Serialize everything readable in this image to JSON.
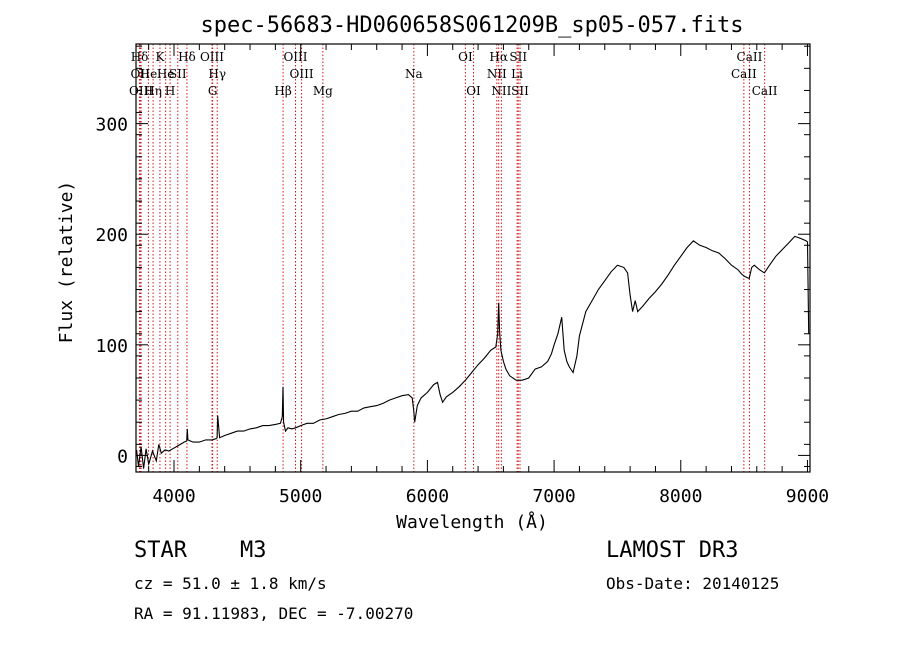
{
  "chart_data": {
    "type": "line",
    "title": "spec-56683-HD060658S061209B_sp05-057.fits",
    "xlabel": "Wavelength (Å)",
    "ylabel": "Flux (relative)",
    "xlim": [
      3700,
      9020
    ],
    "ylim": [
      -15,
      372
    ],
    "x_ticks": [
      4000,
      5000,
      6000,
      7000,
      8000,
      9000
    ],
    "x_tick_labels": [
      "4000",
      "5000",
      "6000",
      "7000",
      "8000",
      "9000"
    ],
    "y_ticks": [
      0,
      100,
      200,
      300
    ],
    "y_tick_labels": [
      "0",
      "100",
      "200",
      "300"
    ],
    "series": [
      {
        "name": "spectrum",
        "color": "#000000",
        "x": [
          3705,
          3720,
          3740,
          3760,
          3780,
          3800,
          3830,
          3860,
          3880,
          3900,
          3930,
          3960,
          3990,
          4020,
          4050,
          4080,
          4100,
          4105,
          4110,
          4150,
          4200,
          4250,
          4300,
          4330,
          4340,
          4345,
          4360,
          4400,
          4450,
          4500,
          4550,
          4600,
          4650,
          4700,
          4750,
          4800,
          4840,
          4855,
          4860,
          4865,
          4880,
          4900,
          4930,
          4960,
          5000,
          5050,
          5100,
          5150,
          5200,
          5250,
          5300,
          5350,
          5400,
          5450,
          5500,
          5550,
          5600,
          5650,
          5700,
          5750,
          5800,
          5850,
          5880,
          5893,
          5900,
          5920,
          5950,
          6000,
          6050,
          6080,
          6100,
          6120,
          6150,
          6200,
          6250,
          6300,
          6350,
          6400,
          6450,
          6500,
          6540,
          6555,
          6563,
          6570,
          6580,
          6600,
          6620,
          6650,
          6700,
          6750,
          6800,
          6850,
          6900,
          6950,
          6980,
          7000,
          7030,
          7060,
          7080,
          7100,
          7120,
          7150,
          7180,
          7200,
          7250,
          7300,
          7350,
          7400,
          7450,
          7500,
          7550,
          7580,
          7600,
          7620,
          7640,
          7660,
          7700,
          7750,
          7800,
          7850,
          7900,
          7950,
          8000,
          8050,
          8100,
          8150,
          8200,
          8250,
          8300,
          8350,
          8400,
          8450,
          8480,
          8500,
          8520,
          8540,
          8560,
          8580,
          8620,
          8660,
          8700,
          8750,
          8800,
          8850,
          8900,
          8950,
          8990,
          9000,
          9010
        ],
        "values": [
          5,
          -10,
          8,
          -12,
          6,
          -8,
          4,
          -5,
          10,
          2,
          5,
          4,
          6,
          8,
          10,
          12,
          13,
          24,
          14,
          12,
          12,
          14,
          14,
          15,
          16,
          36,
          16,
          18,
          20,
          22,
          22,
          24,
          25,
          27,
          27,
          28,
          29,
          35,
          62,
          30,
          22,
          25,
          24,
          25,
          27,
          29,
          29,
          32,
          33,
          35,
          37,
          38,
          40,
          40,
          43,
          44,
          45,
          47,
          50,
          52,
          54,
          55,
          52,
          40,
          30,
          45,
          52,
          57,
          64,
          66,
          55,
          48,
          53,
          57,
          62,
          68,
          75,
          82,
          88,
          95,
          98,
          110,
          138,
          112,
          95,
          85,
          78,
          72,
          68,
          68,
          70,
          78,
          80,
          85,
          92,
          100,
          110,
          125,
          95,
          85,
          80,
          75,
          90,
          108,
          130,
          140,
          150,
          158,
          166,
          172,
          170,
          165,
          145,
          130,
          140,
          130,
          135,
          142,
          148,
          155,
          163,
          172,
          180,
          188,
          194,
          190,
          188,
          185,
          183,
          178,
          172,
          168,
          164,
          162,
          161,
          160,
          170,
          172,
          168,
          165,
          172,
          180,
          186,
          192,
          198,
          196,
          194,
          193,
          110
        ]
      }
    ],
    "spectral_lines": [
      {
        "label": "Hδ",
        "wavelength": 3728,
        "row": 1
      },
      {
        "label": "OII",
        "wavelength": 3733,
        "row": 2
      },
      {
        "label": "OIII",
        "wavelength": 3740,
        "row": 3
      },
      {
        "label": "He",
        "wavelength": 3798,
        "row": 2
      },
      {
        "label": "Hη",
        "wavelength": 3835,
        "row": 3
      },
      {
        "label": "K",
        "wavelength": 3889,
        "row": 1
      },
      {
        "label": "He",
        "wavelength": 3934,
        "row": 2
      },
      {
        "label": "H",
        "wavelength": 3969,
        "row": 3
      },
      {
        "label": "SII",
        "wavelength": 4030,
        "row": 2
      },
      {
        "label": "Hδ",
        "wavelength": 4102,
        "row": 1
      },
      {
        "label": "OIII",
        "wavelength": 4300,
        "row": 1
      },
      {
        "label": "Hγ",
        "wavelength": 4341,
        "row": 2
      },
      {
        "label": "G",
        "wavelength": 4305,
        "row": 3
      },
      {
        "label": "Hβ",
        "wavelength": 4861,
        "row": 3
      },
      {
        "label": "OIII",
        "wavelength": 4959,
        "row": 1
      },
      {
        "label": "OIII",
        "wavelength": 5007,
        "row": 2
      },
      {
        "label": "Mg",
        "wavelength": 5175,
        "row": 3
      },
      {
        "label": "Na",
        "wavelength": 5893,
        "row": 2
      },
      {
        "label": "OI",
        "wavelength": 6300,
        "row": 1
      },
      {
        "label": "OI",
        "wavelength": 6364,
        "row": 3
      },
      {
        "label": "Hα",
        "wavelength": 6563,
        "row": 1
      },
      {
        "label": "NII",
        "wavelength": 6548,
        "row": 2
      },
      {
        "label": "NII",
        "wavelength": 6584,
        "row": 3
      },
      {
        "label": "SII",
        "wavelength": 6717,
        "row": 1
      },
      {
        "label": "Li",
        "wavelength": 6708,
        "row": 2
      },
      {
        "label": "SII",
        "wavelength": 6731,
        "row": 3
      },
      {
        "label": "CaII",
        "wavelength": 8542,
        "row": 1
      },
      {
        "label": "CaII",
        "wavelength": 8498,
        "row": 2
      },
      {
        "label": "CaII",
        "wavelength": 8662,
        "row": 3
      }
    ],
    "spectral_line_color": "#d01818"
  },
  "info": {
    "object_class": "STAR",
    "subclass": "M3",
    "survey": "LAMOST DR3",
    "redshift": "cz = 51.0 ± 1.8 km/s",
    "obs_date": "Obs-Date: 20140125",
    "coords": "RA =  91.11983, DEC =  -7.00270"
  }
}
